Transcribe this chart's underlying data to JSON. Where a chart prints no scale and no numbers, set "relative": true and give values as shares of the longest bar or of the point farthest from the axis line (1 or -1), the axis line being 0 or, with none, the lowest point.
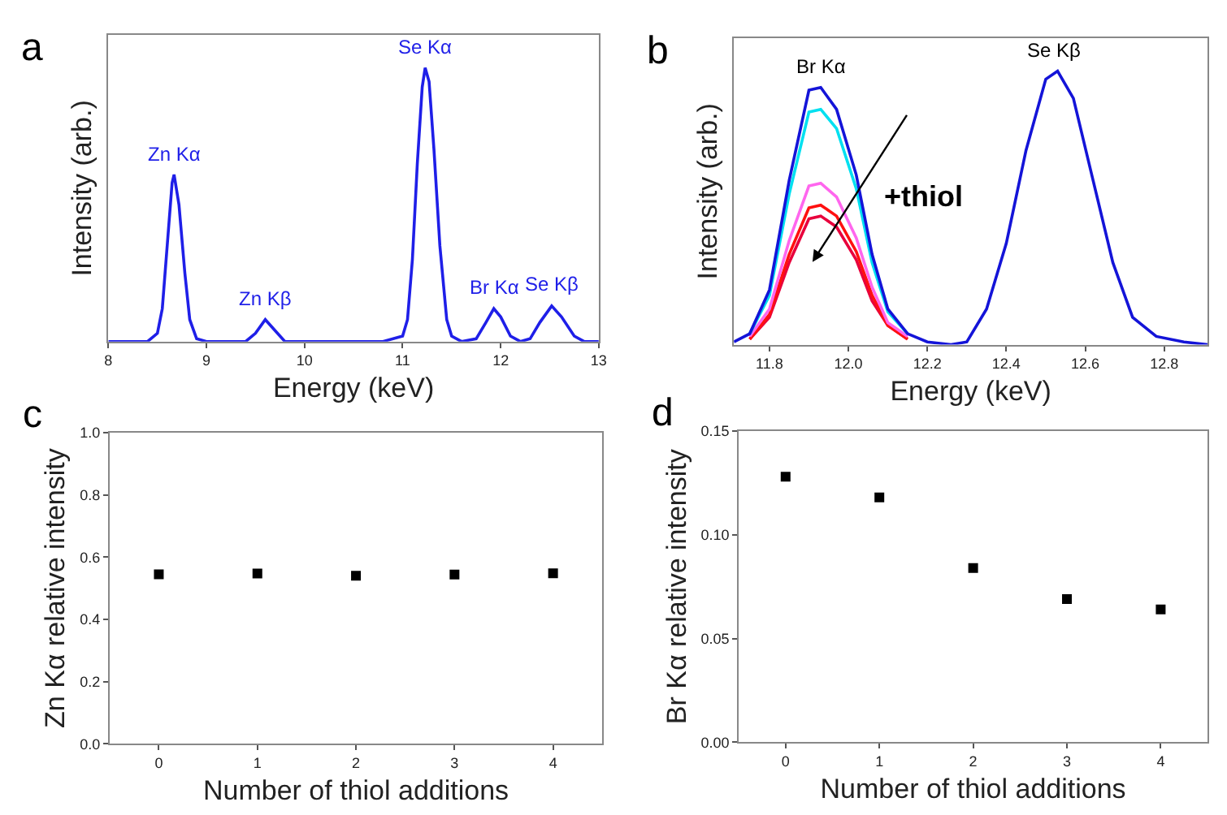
{
  "chart_data": [
    {
      "type": "line",
      "title": "a",
      "xlabel": "Energy (keV)",
      "ylabel": "Intensity (arb.)",
      "relative": true,
      "xlim": [
        8,
        13
      ],
      "xticks": [
        8,
        9,
        10,
        11,
        12,
        13
      ],
      "tick_labels": "x",
      "marker": "none",
      "line_style": "solid",
      "x": [
        8.0,
        8.4,
        8.5,
        8.55,
        8.6,
        8.65,
        8.67,
        8.72,
        8.78,
        8.83,
        8.9,
        9.0,
        9.4,
        9.5,
        9.6,
        9.7,
        9.8,
        10.8,
        11.0,
        11.05,
        11.1,
        11.15,
        11.2,
        11.23,
        11.27,
        11.32,
        11.38,
        11.45,
        11.5,
        11.6,
        11.75,
        11.85,
        11.93,
        12.0,
        12.1,
        12.2,
        12.3,
        12.4,
        12.52,
        12.62,
        12.75,
        12.85,
        13.0
      ],
      "series": [
        {
          "color": "#1f1fe8",
          "values": [
            0,
            0,
            0.03,
            0.12,
            0.35,
            0.58,
            0.61,
            0.5,
            0.25,
            0.08,
            0.01,
            0,
            0,
            0.03,
            0.08,
            0.04,
            0,
            0,
            0.02,
            0.08,
            0.3,
            0.65,
            0.93,
            1.0,
            0.95,
            0.7,
            0.35,
            0.08,
            0.02,
            0,
            0.01,
            0.07,
            0.12,
            0.09,
            0.02,
            0,
            0.01,
            0.07,
            0.13,
            0.09,
            0.02,
            0,
            0
          ]
        }
      ],
      "annotations": [
        {
          "text": "Zn Kα",
          "x": 8.67,
          "y": 0.61
        },
        {
          "text": "Zn Kβ",
          "x": 9.6,
          "y": 0.08
        },
        {
          "text": "Se Kα",
          "x": 11.23,
          "y": 1.0
        },
        {
          "text": "Br Kα",
          "x": 11.93,
          "y": 0.12
        },
        {
          "text": "Se Kβ",
          "x": 12.52,
          "y": 0.13
        }
      ]
    },
    {
      "type": "line",
      "title": "b",
      "xlabel": "Energy (keV)",
      "ylabel": "Intensity (arb.)",
      "relative": true,
      "xlim": [
        11.71,
        12.91
      ],
      "xticks": [
        11.8,
        {
          "value": 12.0,
          "label": "12.0"
        },
        12.2,
        12.4,
        12.6,
        12.8
      ],
      "tick_labels": "x",
      "marker": "none",
      "line_style": "solid",
      "x": [
        11.71,
        11.75,
        11.8,
        11.85,
        11.9,
        11.93,
        11.97,
        12.02,
        12.06,
        12.1,
        12.15,
        12.2,
        12.26,
        12.3,
        12.35,
        12.4,
        12.45,
        12.5,
        12.53,
        12.57,
        12.62,
        12.67,
        12.72,
        12.78,
        12.85,
        12.91
      ],
      "series": [
        {
          "color": "#e8003c",
          "values": [
            null,
            0.02,
            0.1,
            0.3,
            0.46,
            0.47,
            0.43,
            0.31,
            0.16,
            0.07,
            0.02,
            null,
            null,
            null,
            null,
            null,
            null,
            null,
            null,
            null,
            null,
            null,
            null,
            null,
            null,
            null
          ]
        },
        {
          "color": "#ff1010",
          "values": [
            null,
            0.02,
            0.11,
            0.33,
            0.5,
            0.51,
            0.47,
            0.34,
            0.18,
            0.07,
            0.02,
            null,
            null,
            null,
            null,
            null,
            null,
            null,
            null,
            null,
            null,
            null,
            null,
            null,
            null,
            null
          ]
        },
        {
          "color": "#ff66ee",
          "values": [
            null,
            0.03,
            0.13,
            0.38,
            0.58,
            0.59,
            0.54,
            0.39,
            0.21,
            0.08,
            0.03,
            null,
            null,
            null,
            null,
            null,
            null,
            null,
            null,
            null,
            null,
            null,
            null,
            null,
            null,
            null
          ]
        },
        {
          "color": "#00e0f0",
          "values": [
            null,
            0.04,
            0.18,
            0.55,
            0.85,
            0.86,
            0.79,
            0.57,
            0.3,
            0.12,
            0.04,
            null,
            null,
            null,
            null,
            null,
            null,
            null,
            null,
            null,
            null,
            null,
            null,
            null,
            null,
            null
          ]
        },
        {
          "color": "#1414d8",
          "values": [
            0.01,
            0.04,
            0.2,
            0.6,
            0.93,
            0.94,
            0.86,
            0.62,
            0.33,
            0.13,
            0.04,
            0.01,
            0,
            0.01,
            0.13,
            0.37,
            0.71,
            0.97,
            1.0,
            0.9,
            0.6,
            0.3,
            0.1,
            0.03,
            0.01,
            0
          ]
        }
      ],
      "annotations": [
        {
          "text": "Br Kα",
          "x": 11.93,
          "y": 0.94
        },
        {
          "text": "Se Kβ",
          "x": 12.52,
          "y": 1.0
        },
        "+thiol"
      ]
    },
    {
      "type": "scatter",
      "title": "c",
      "xlabel": "Number of thiol additions",
      "ylabel": "Zn Kα relative intensity",
      "xlim": [
        -0.5,
        4.5
      ],
      "xticks": [
        0,
        1,
        2,
        3,
        4
      ],
      "ylim": [
        0,
        1
      ],
      "yticks": [
        {
          "value": 0,
          "label": "0.0"
        },
        0.2,
        0.4,
        0.6,
        0.8,
        {
          "value": 1,
          "label": "1.0"
        }
      ],
      "marker": "square",
      "x": [
        0,
        1,
        2,
        3,
        4
      ],
      "series": [
        {
          "color": "#000000",
          "values": [
            0.545,
            0.547,
            0.54,
            0.544,
            0.548
          ]
        }
      ]
    },
    {
      "type": "scatter",
      "title": "d",
      "xlabel": "Number of thiol additions",
      "ylabel": "Br Kα relative intensity",
      "xlim": [
        -0.5,
        4.5
      ],
      "xticks": [
        0,
        1,
        2,
        3,
        4
      ],
      "ylim": [
        0,
        0.15
      ],
      "yticks": [
        {
          "value": 0,
          "label": "0.00"
        },
        {
          "value": 0.05,
          "label": "0.05"
        },
        {
          "value": 0.1,
          "label": "0.10"
        },
        {
          "value": 0.15,
          "label": "0.15"
        }
      ],
      "marker": "square",
      "x": [
        0,
        1,
        2,
        3,
        4
      ],
      "series": [
        {
          "color": "#000000",
          "values": [
            0.128,
            0.118,
            0.084,
            0.069,
            0.064
          ]
        }
      ]
    }
  ]
}
